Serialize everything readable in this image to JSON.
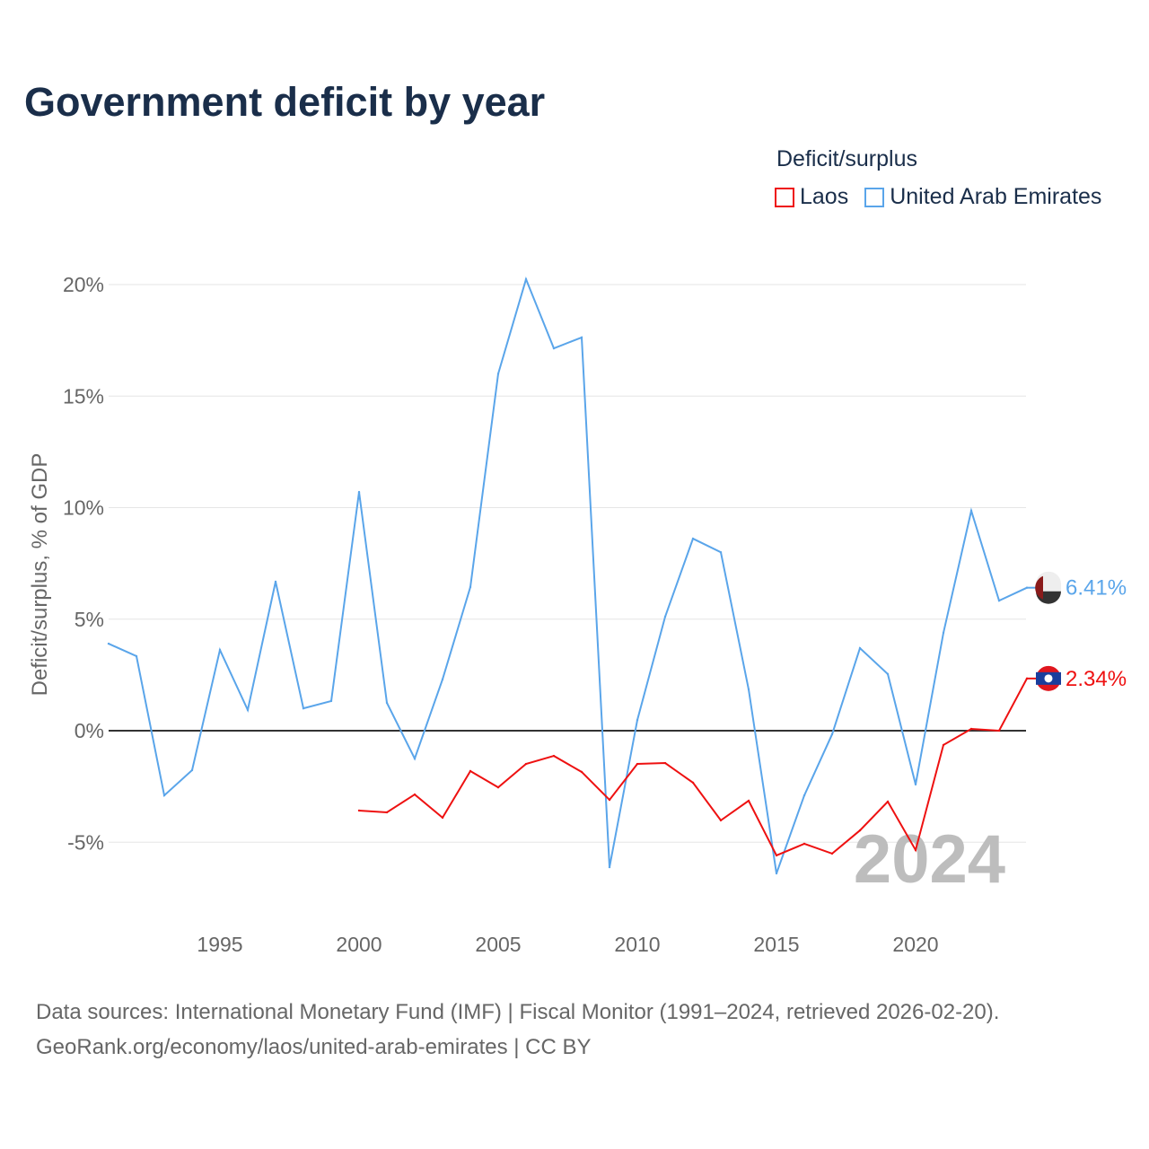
{
  "title": "Government deficit by year",
  "legend": {
    "title": "Deficit/surplus",
    "items": [
      {
        "label": "Laos",
        "color": "#ee1111"
      },
      {
        "label": "United Arab Emirates",
        "color": "#5aa5ea"
      }
    ]
  },
  "source": {
    "line1": "Data sources: International Monetary Fund (IMF) | Fiscal Monitor (1991–2024, retrieved 2026-02-20).",
    "line2": "GeoRank.org/economy/laos/united-arab-emirates | CC BY"
  },
  "chart_data": {
    "type": "line",
    "title": "Government deficit by year",
    "xlabel": "",
    "ylabel": "Deficit/surplus, % of GDP",
    "xlim": [
      1991,
      2024
    ],
    "ylim": [
      -7,
      21
    ],
    "grid": true,
    "legend_position": "top-right",
    "year_watermark": "2024",
    "x_ticks": [
      {
        "v": 1995,
        "label": "1995"
      },
      {
        "v": 2000,
        "label": "2000"
      },
      {
        "v": 2005,
        "label": "2005"
      },
      {
        "v": 2010,
        "label": "2010"
      },
      {
        "v": 2015,
        "label": "2015"
      },
      {
        "v": 2020,
        "label": "2020"
      }
    ],
    "y_ticks": [
      {
        "v": -5,
        "label": "-5%"
      },
      {
        "v": 0,
        "label": "0%"
      },
      {
        "v": 5,
        "label": "5%"
      },
      {
        "v": 10,
        "label": "10%"
      },
      {
        "v": 15,
        "label": "15%"
      },
      {
        "v": 20,
        "label": "20%"
      }
    ],
    "series": [
      {
        "name": "United Arab Emirates",
        "color": "#5aa5ea",
        "end_label": "6.41%",
        "x": [
          1991,
          1992,
          1993,
          1994,
          1995,
          1996,
          1997,
          1998,
          1999,
          2000,
          2001,
          2002,
          2003,
          2004,
          2005,
          2006,
          2007,
          2008,
          2009,
          2010,
          2011,
          2012,
          2013,
          2014,
          2015,
          2016,
          2017,
          2018,
          2019,
          2020,
          2021,
          2022,
          2023,
          2024
        ],
        "values": [
          3.9,
          3.34,
          -2.9,
          -1.77,
          3.62,
          0.93,
          6.68,
          1.0,
          1.33,
          10.7,
          1.25,
          -1.25,
          2.3,
          6.44,
          16.0,
          20.24,
          17.14,
          17.63,
          -6.12,
          0.48,
          5.11,
          8.61,
          8.0,
          1.85,
          -6.4,
          -2.9,
          -0.16,
          3.7,
          2.54,
          -2.41,
          4.39,
          9.86,
          5.83,
          6.41
        ]
      },
      {
        "name": "Laos",
        "color": "#ee1111",
        "end_label": "2.34%",
        "x": [
          2000,
          2001,
          2002,
          2003,
          2004,
          2005,
          2006,
          2007,
          2008,
          2009,
          2010,
          2011,
          2012,
          2013,
          2014,
          2015,
          2016,
          2017,
          2018,
          2019,
          2020,
          2021,
          2022,
          2023,
          2024
        ],
        "values": [
          -3.58,
          -3.66,
          -2.86,
          -3.9,
          -1.81,
          -2.54,
          -1.49,
          -1.13,
          -1.85,
          -3.1,
          -1.49,
          -1.45,
          -2.33,
          -4.02,
          -3.14,
          -5.59,
          -5.07,
          -5.51,
          -4.47,
          -3.18,
          -5.35,
          -0.64,
          0.08,
          0.0,
          2.34
        ]
      }
    ]
  }
}
